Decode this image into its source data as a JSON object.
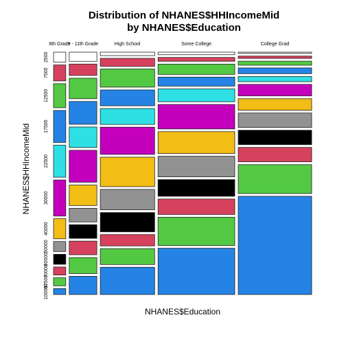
{
  "chart_data": {
    "type": "mosaic",
    "title_line1": "Distribution of NHANES$HHIncomeMid",
    "title_line2": "by NHANES$Education",
    "xlabel": "NHANES$Education",
    "ylabel": "NHANES$HHIncomeMid",
    "x_categories": [
      "8th Grade",
      "9 - 11th Grade",
      "High School",
      "Some College",
      "College Grad"
    ],
    "x_widths": [
      0.037,
      0.084,
      0.165,
      0.233,
      0.223
    ],
    "y_tick_labels": [
      "2500",
      "7500",
      "12500",
      "17500",
      "22500",
      "30000",
      "40000",
      "50000",
      "60000",
      "70000",
      "87500",
      "100000"
    ],
    "income_levels": [
      "2500",
      "7500",
      "12500",
      "17500",
      "22500",
      "30000",
      "40000",
      "50000",
      "60000",
      "70000",
      "87500",
      "100000"
    ],
    "level_colors": [
      "#ffffff",
      "#d6425d",
      "#53c943",
      "#2483e5",
      "#2ee0e4",
      "#c400bd",
      "#f2bd15",
      "#929292",
      "#000000",
      "#d6425d",
      "#53c943",
      "#2483e5"
    ],
    "proportions": [
      [
        0.05,
        0.08,
        0.12,
        0.16,
        0.16,
        0.18,
        0.1,
        0.05,
        0.05,
        0.04,
        0.04,
        0.03
      ],
      [
        0.04,
        0.05,
        0.09,
        0.1,
        0.09,
        0.14,
        0.09,
        0.06,
        0.06,
        0.06,
        0.07,
        0.08
      ],
      [
        0.015,
        0.035,
        0.08,
        0.07,
        0.07,
        0.12,
        0.13,
        0.09,
        0.085,
        0.05,
        0.07,
        0.12
      ],
      [
        0.01,
        0.015,
        0.04,
        0.035,
        0.05,
        0.095,
        0.085,
        0.08,
        0.065,
        0.06,
        0.11,
        0.18
      ],
      [
        0.004,
        0.008,
        0.014,
        0.02,
        0.018,
        0.04,
        0.04,
        0.05,
        0.05,
        0.05,
        0.1,
        0.34
      ]
    ]
  }
}
